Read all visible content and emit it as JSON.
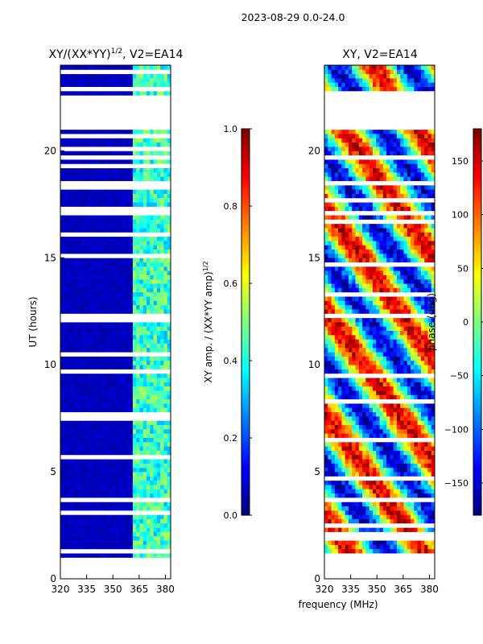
{
  "suptitle": "2023-08-29 0.0-24.0",
  "shared_xlabel": "frequency (MHz)",
  "colors": {
    "jet": [
      "#00007f",
      "#0000ff",
      "#007fff",
      "#00ffff",
      "#7fff7f",
      "#ffff00",
      "#ff7f00",
      "#ff0000",
      "#7f0000"
    ],
    "gap": "#ffffff"
  },
  "chart_data": [
    {
      "type": "heatmap",
      "title_main": "XY/(XX*YY)",
      "title_sup": "1/2",
      "title_tail": ", V2=EA14",
      "xlabel": "",
      "ylabel": "UT (hours)",
      "xlim": [
        320,
        383
      ],
      "ylim": [
        0,
        24
      ],
      "xticks": [
        320,
        335,
        350,
        365,
        380
      ],
      "yticks": [
        0,
        5,
        10,
        15,
        20
      ],
      "gaps_hours": [
        [
          0.05,
          0.9
        ],
        [
          21.1,
          22.5
        ],
        [
          19.7,
          19.8
        ],
        [
          18.5,
          18.6
        ],
        [
          22.8,
          22.9
        ]
      ],
      "description": "low coherence (~0.05) below 362 MHz; channels 362-383 MHz show 0.3-0.5",
      "colorbar": {
        "label_main": "XY amp. / (XX*YY amp)",
        "label_sup": "1/2",
        "vmin": 0.0,
        "vmax": 1.0,
        "ticks": [
          "0.0",
          "0.2",
          "0.4",
          "0.6",
          "0.8",
          "1.0"
        ]
      }
    },
    {
      "type": "heatmap",
      "title_main": "XY, V2=EA14",
      "xlabel": "frequency (MHz)",
      "ylabel": "",
      "xlim": [
        320,
        383
      ],
      "ylim": [
        0,
        24
      ],
      "xticks": [
        320,
        335,
        350,
        365,
        380
      ],
      "yticks": [
        0,
        5,
        10,
        15,
        20
      ],
      "gaps_hours": [
        [
          0.05,
          0.9
        ],
        [
          21.1,
          22.5
        ],
        [
          19.7,
          19.8
        ],
        [
          18.5,
          18.6
        ],
        [
          22.8,
          22.9
        ]
      ],
      "description": "XY phase (deg) varying between -180 and 180 with time and frequency",
      "colorbar": {
        "label_main": "phase (deg)",
        "vmin": -180,
        "vmax": 180,
        "ticks": [
          "150",
          "100",
          "50",
          "0",
          "−50",
          "−100",
          "−150"
        ],
        "tick_values": [
          150,
          100,
          50,
          0,
          -50,
          -100,
          -150
        ]
      }
    }
  ]
}
